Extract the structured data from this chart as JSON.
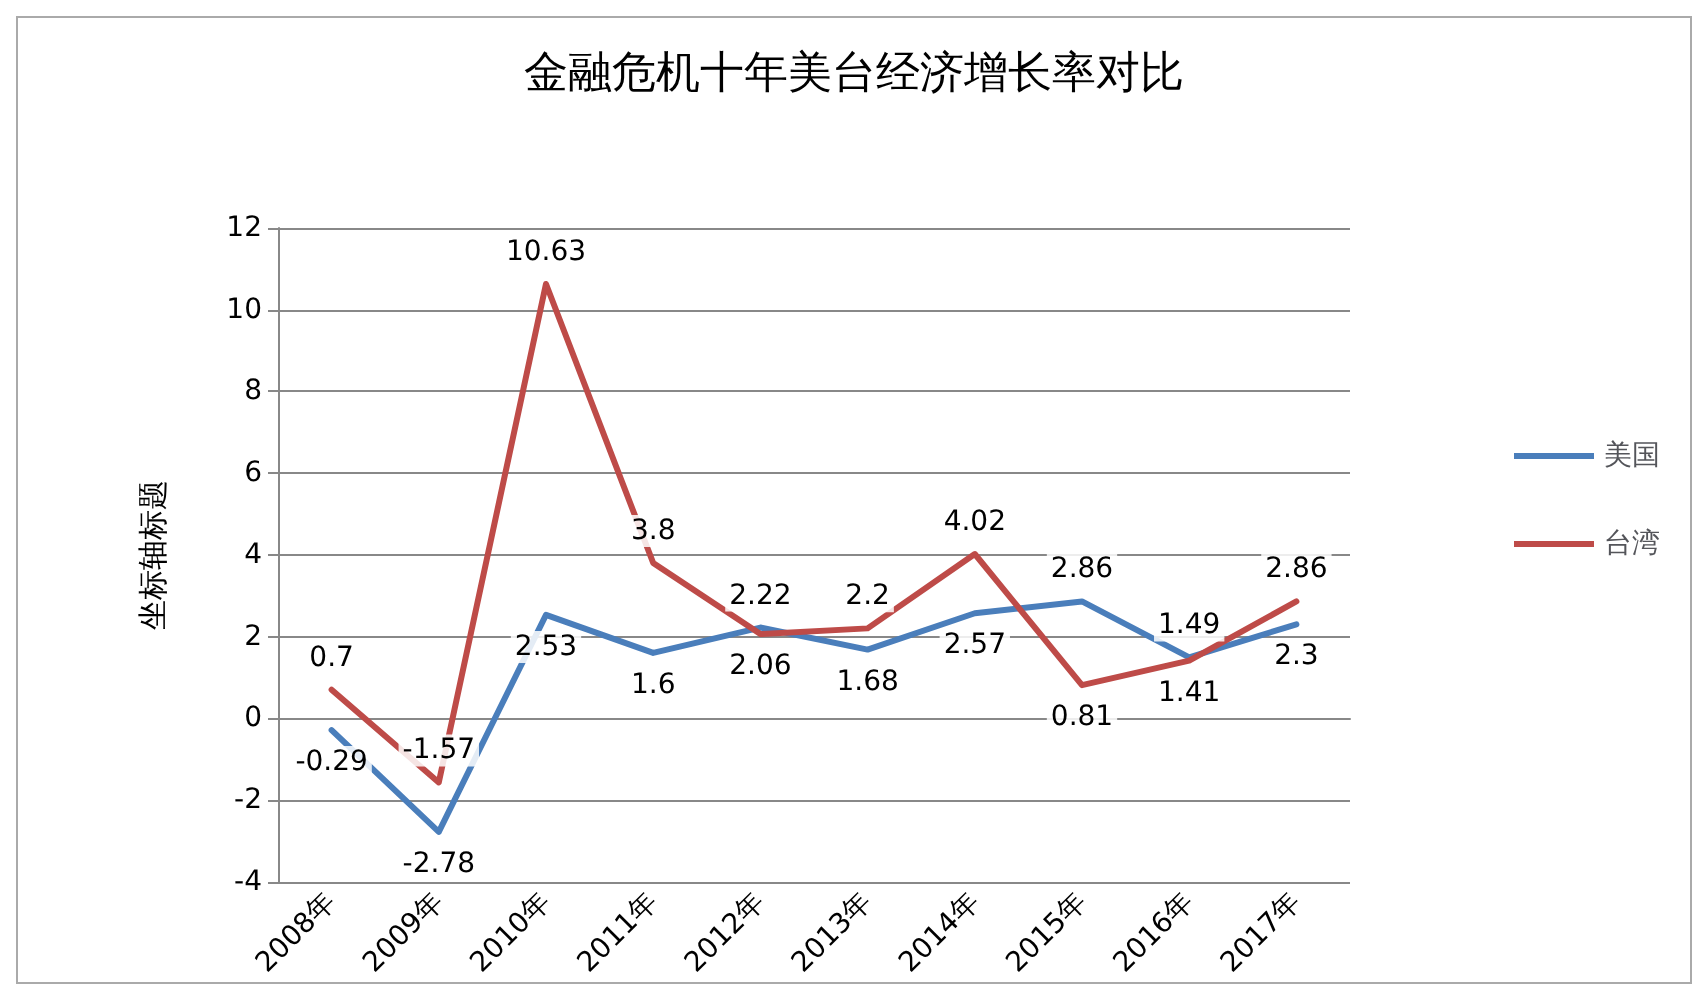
{
  "chart_data": {
    "type": "line",
    "title": "金融危机十年美台经济增长率对比",
    "ylabel": "坐标轴标题",
    "categories": [
      "2008年",
      "2009年",
      "2010年",
      "2011年",
      "2012年",
      "2013年",
      "2014年",
      "2015年",
      "2016年",
      "2017年"
    ],
    "series": [
      {
        "name": "美国",
        "color": "#4a7ebb",
        "values": [
          -0.29,
          -2.78,
          2.53,
          1.6,
          2.22,
          1.68,
          2.57,
          2.86,
          1.49,
          2.3
        ]
      },
      {
        "name": "台湾",
        "color": "#be4b48",
        "values": [
          0.7,
          -1.57,
          10.63,
          3.8,
          2.06,
          2.2,
          4.02,
          0.81,
          1.41,
          2.86
        ]
      }
    ],
    "ylim": [
      -4,
      12
    ],
    "yticks": [
      -4,
      -2,
      0,
      2,
      4,
      6,
      8,
      10,
      12
    ],
    "grid": "y",
    "legend": "right",
    "data_labels": true,
    "marker": "none",
    "line_style": "solid"
  }
}
